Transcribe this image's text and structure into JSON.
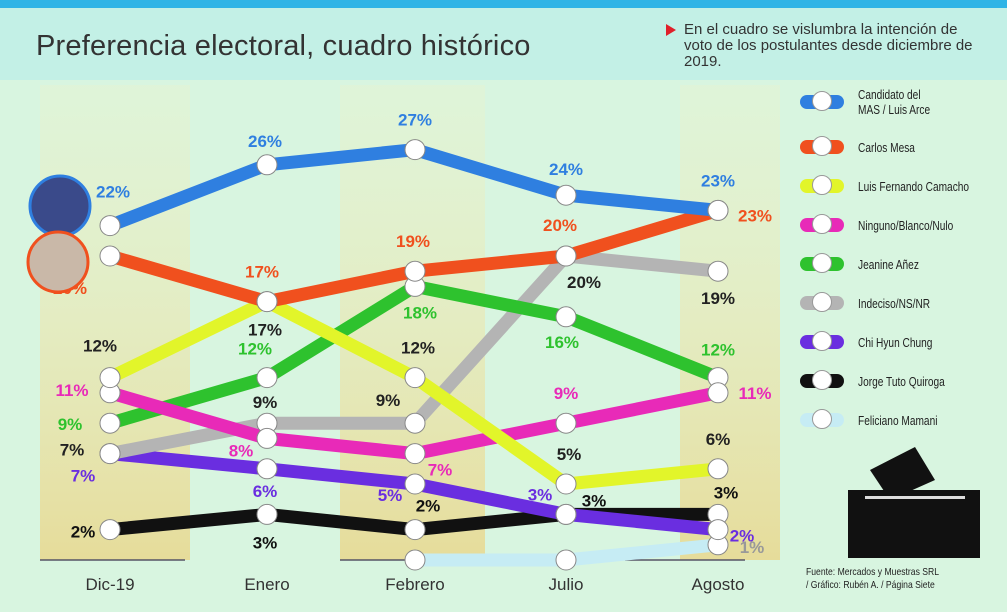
{
  "header": {
    "title": "Preferencia electoral, cuadro histórico",
    "note": "En el cuadro se vislumbra la intención de voto de los postulantes desde diciembre de 2019."
  },
  "source": {
    "line1": "Fuente: Mercados y Muestras SRL",
    "line2": "/ Gráfico: Rubén A. / Página Siete"
  },
  "chart_data": {
    "type": "line",
    "title": "Preferencia electoral, cuadro histórico",
    "xlabel": "",
    "ylabel": "",
    "ylim": [
      0,
      30
    ],
    "grid": false,
    "legend_position": "right",
    "categories": [
      "Dic-19",
      "Enero",
      "Febrero",
      "Julio",
      "Agosto"
    ],
    "series": [
      {
        "name": "Candidato del MAS / Luis Arce",
        "color": "#2f7fe0",
        "values": [
          22,
          26,
          27,
          24,
          23
        ],
        "labels": [
          "22%",
          "26%",
          "27%",
          "24%",
          "23%"
        ]
      },
      {
        "name": "Carlos Mesa",
        "color": "#f0501e",
        "values": [
          20,
          17,
          19,
          20,
          23
        ],
        "labels": [
          "20%",
          "17%",
          "19%",
          "20%",
          "23%"
        ]
      },
      {
        "name": "Luis Fernando Camacho",
        "color": "#e2f52a",
        "values": [
          12,
          17,
          12,
          5,
          6
        ],
        "labels": [
          "12%",
          "17%",
          "12%",
          "5%",
          "6%"
        ]
      },
      {
        "name": "Ninguno/Blanco/Nulo",
        "color": "#e82ab8",
        "values": [
          11,
          8,
          7,
          9,
          11
        ],
        "labels": [
          "11%",
          "8%",
          "7%",
          "9%",
          "11%"
        ]
      },
      {
        "name": "Jeanine Añez",
        "color": "#2ec22e",
        "values": [
          9,
          12,
          18,
          16,
          12
        ],
        "labels": [
          "9%",
          "12%",
          "18%",
          "16%",
          "12%"
        ]
      },
      {
        "name": "Indeciso/NS/NR",
        "color": "#b4b4b4",
        "values": [
          7,
          9,
          9,
          20,
          19
        ],
        "labels": [
          "7%",
          "9%",
          "9%",
          "20%",
          "19%"
        ]
      },
      {
        "name": "Chi Hyun Chung",
        "color": "#6a2ee0",
        "values": [
          7,
          6,
          5,
          3,
          2
        ],
        "labels": [
          "7%",
          "6%",
          "5%",
          "3%",
          "2%"
        ]
      },
      {
        "name": "Jorge Tuto Quiroga",
        "color": "#111111",
        "values": [
          2,
          3,
          2,
          3,
          3
        ],
        "labels": [
          "2%",
          "3%",
          "2%",
          "3%",
          "3%"
        ]
      },
      {
        "name": "Feliciano Mamani",
        "color": "#c6ecf4",
        "values": [
          null,
          null,
          0,
          0,
          1
        ],
        "labels": [
          null,
          null,
          null,
          null,
          "1%"
        ]
      }
    ]
  }
}
